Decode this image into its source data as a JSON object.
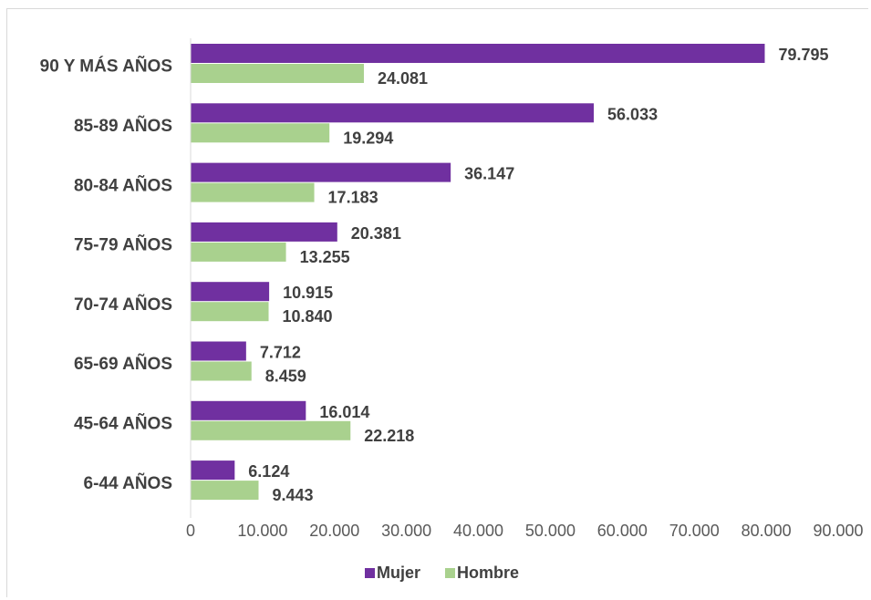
{
  "chart_data": {
    "type": "bar",
    "orientation": "horizontal",
    "categories": [
      "90 Y MÁS AÑOS",
      "85-89 AÑOS",
      "80-84 AÑOS",
      "75-79 AÑOS",
      "70-74 AÑOS",
      "65-69 AÑOS",
      "45-64 AÑOS",
      "6-44 AÑOS"
    ],
    "series": [
      {
        "name": "Mujer",
        "color": "#7030a0",
        "values": [
          79795,
          56033,
          36147,
          20381,
          10915,
          7712,
          16014,
          6124
        ],
        "labels": [
          "79.795",
          "56.033",
          "36.147",
          "20.381",
          "10.915",
          "7.712",
          "16.014",
          "6.124"
        ]
      },
      {
        "name": "Hombre",
        "color": "#a9d18e",
        "values": [
          24081,
          19294,
          17183,
          13255,
          10840,
          8459,
          22218,
          9443
        ],
        "labels": [
          "24.081",
          "19.294",
          "17.183",
          "13.255",
          "10.840",
          "8.459",
          "22.218",
          "9.443"
        ]
      }
    ],
    "xlim": [
      0,
      90000
    ],
    "xticks": [
      0,
      10000,
      20000,
      30000,
      40000,
      50000,
      60000,
      70000,
      80000,
      90000
    ],
    "xtick_labels": [
      "0",
      "10.000",
      "20.000",
      "30.000",
      "40.000",
      "50.000",
      "60.000",
      "70.000",
      "80.000",
      "90.000"
    ],
    "grid": false,
    "legend_position": "bottom"
  }
}
